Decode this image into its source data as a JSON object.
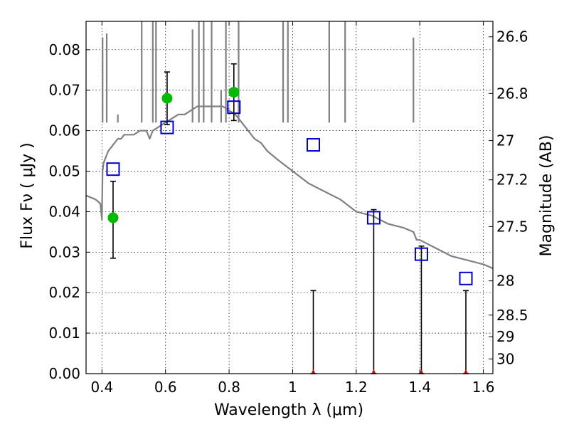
{
  "chart_data": {
    "type": "scatter",
    "xlabel": "Wavelength  λ (μm)",
    "ylabel": "Flux  Fν  ( μJy )",
    "ylabel_right": "Magnitude (AB)",
    "xlim": [
      0.35,
      1.63
    ],
    "ylim": [
      0.0,
      0.087
    ],
    "grid": true,
    "x_ticks": [
      0.4,
      0.6,
      0.8,
      1.0,
      1.2,
      1.4,
      1.6
    ],
    "x_tick_labels": [
      "0.4",
      "0.6",
      "0.8",
      "1",
      "1.2",
      "1.4",
      "1.6"
    ],
    "y_ticks": [
      0.0,
      0.01,
      0.02,
      0.03,
      0.04,
      0.05,
      0.06,
      0.07,
      0.08
    ],
    "y_tick_labels": [
      "0.00",
      "0.01",
      "0.02",
      "0.03",
      "0.04",
      "0.05",
      "0.06",
      "0.07",
      "0.08"
    ],
    "right_ticks_mag": [
      26.6,
      26.8,
      27,
      27.2,
      27.5,
      28,
      28.5,
      29,
      30
    ],
    "right_tick_labels": [
      "26.6",
      "26.8",
      "27",
      "27.2",
      "27.5",
      "28",
      "28.5",
      "29",
      "30"
    ],
    "series": [
      {
        "name": "SED model",
        "kind": "line",
        "color": "#808080",
        "x": [
          0.35,
          0.38,
          0.395,
          0.4,
          0.402,
          0.405,
          0.41,
          0.42,
          0.43,
          0.44,
          0.45,
          0.46,
          0.47,
          0.48,
          0.5,
          0.52,
          0.54,
          0.55,
          0.56,
          0.58,
          0.6,
          0.62,
          0.64,
          0.66,
          0.68,
          0.7,
          0.72,
          0.74,
          0.76,
          0.78,
          0.8,
          0.82,
          0.84,
          0.86,
          0.88,
          0.9,
          0.92,
          0.95,
          1.0,
          1.05,
          1.1,
          1.15,
          1.2,
          1.25,
          1.3,
          1.35,
          1.38,
          1.39,
          1.4,
          1.45,
          1.5,
          1.55,
          1.6,
          1.63
        ],
        "y": [
          0.044,
          0.043,
          0.042,
          0.038,
          0.05,
          0.052,
          0.053,
          0.055,
          0.056,
          0.057,
          0.058,
          0.058,
          0.059,
          0.059,
          0.059,
          0.06,
          0.06,
          0.058,
          0.06,
          0.061,
          0.062,
          0.063,
          0.064,
          0.064,
          0.065,
          0.066,
          0.066,
          0.066,
          0.066,
          0.066,
          0.065,
          0.064,
          0.062,
          0.06,
          0.058,
          0.057,
          0.055,
          0.053,
          0.05,
          0.047,
          0.045,
          0.043,
          0.04,
          0.039,
          0.037,
          0.036,
          0.035,
          0.033,
          0.033,
          0.031,
          0.029,
          0.028,
          0.027,
          0.026
        ]
      },
      {
        "name": "Model spikes",
        "kind": "spikes",
        "color": "#808080",
        "x": [
          0.402,
          0.415,
          0.45,
          0.525,
          0.56,
          0.57,
          0.685,
          0.705,
          0.72,
          0.745,
          0.775,
          0.79,
          0.83,
          0.97,
          0.985,
          1.115,
          1.165,
          1.38
        ],
        "y": [
          0.083,
          0.084,
          0.064,
          0.087,
          0.087,
          0.087,
          0.085,
          0.087,
          0.087,
          0.087,
          0.07,
          0.087,
          0.087,
          0.087,
          0.087,
          0.087,
          0.087,
          0.083
        ]
      },
      {
        "name": "Observed",
        "kind": "marker-circle",
        "color": "#00bb00",
        "x": [
          0.435,
          0.605,
          0.815
        ],
        "y": [
          0.0385,
          0.068,
          0.0695
        ],
        "err_low": [
          0.0285,
          0.0615,
          0.0625
        ],
        "err_high": [
          0.0475,
          0.0745,
          0.0765
        ]
      },
      {
        "name": "Model photometry",
        "kind": "marker-square",
        "color": "#0000cc",
        "x": [
          0.435,
          0.605,
          0.815,
          1.065,
          1.255,
          1.405,
          1.545
        ],
        "y": [
          0.0505,
          0.0608,
          0.0658,
          0.0565,
          0.0385,
          0.0295,
          0.0235
        ]
      },
      {
        "name": "Upper limits",
        "kind": "upper-limit",
        "color": "#cc0000",
        "x": [
          1.065,
          1.255,
          1.405,
          1.545
        ],
        "y": [
          0.0,
          0.0,
          0.0,
          0.0
        ],
        "err_high": [
          0.0205,
          0.0405,
          0.0315,
          0.0205
        ]
      }
    ]
  }
}
